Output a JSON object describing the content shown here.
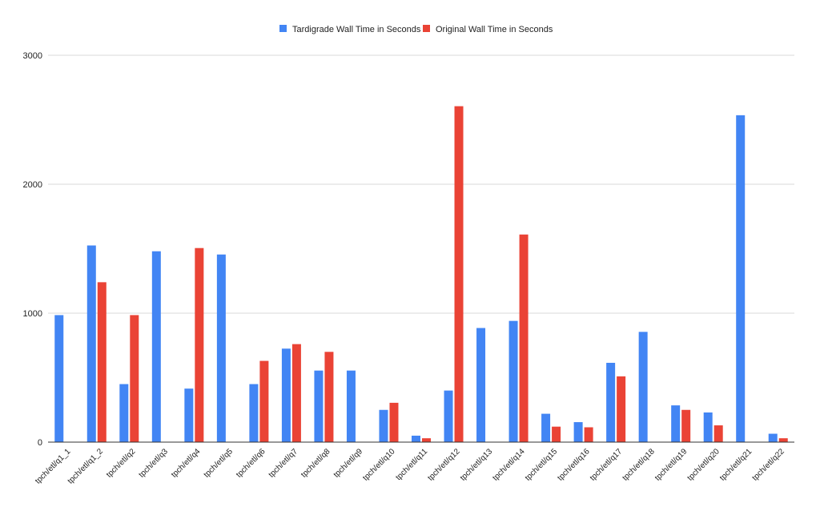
{
  "chart_data": {
    "type": "bar",
    "title": "",
    "xlabel": "",
    "ylabel": "",
    "ylim": [
      0,
      3000
    ],
    "yticks": [
      0,
      1000,
      2000,
      3000
    ],
    "grid": true,
    "legend_position": "top",
    "categories": [
      "tpch/etl/q1_1",
      "tpch/etl/q1_2",
      "tpch/etl/q2",
      "tpch/etl/q3",
      "tpch/etl/q4",
      "tpch/etl/q5",
      "tpch/etl/q6",
      "tpch/etl/q7",
      "tpch/etl/q8",
      "tpch/etl/q9",
      "tpch/etl/q10",
      "tpch/etl/q11",
      "tpch/etl/q12",
      "tpch/etl/q13",
      "tpch/etl/q14",
      "tpch/etl/q15",
      "tpch/etl/q16",
      "tpch/etl/q17",
      "tpch/etl/q18",
      "tpch/etl/q19",
      "tpch/etl/q20",
      "tpch/etl/q21",
      "tpch/etl/q22"
    ],
    "series": [
      {
        "name": "Tardigrade Wall Time in Seconds",
        "color": "#4285f4",
        "values": [
          985,
          1525,
          450,
          1480,
          415,
          1455,
          450,
          725,
          555,
          555,
          250,
          50,
          400,
          885,
          940,
          220,
          155,
          615,
          855,
          285,
          230,
          2535,
          65
        ]
      },
      {
        "name": "Original Wall Time in Seconds",
        "color": "#ea4335",
        "values": [
          null,
          1240,
          985,
          null,
          1505,
          null,
          630,
          760,
          700,
          null,
          305,
          30,
          2605,
          null,
          1610,
          120,
          115,
          510,
          null,
          250,
          130,
          null,
          30
        ]
      }
    ]
  }
}
